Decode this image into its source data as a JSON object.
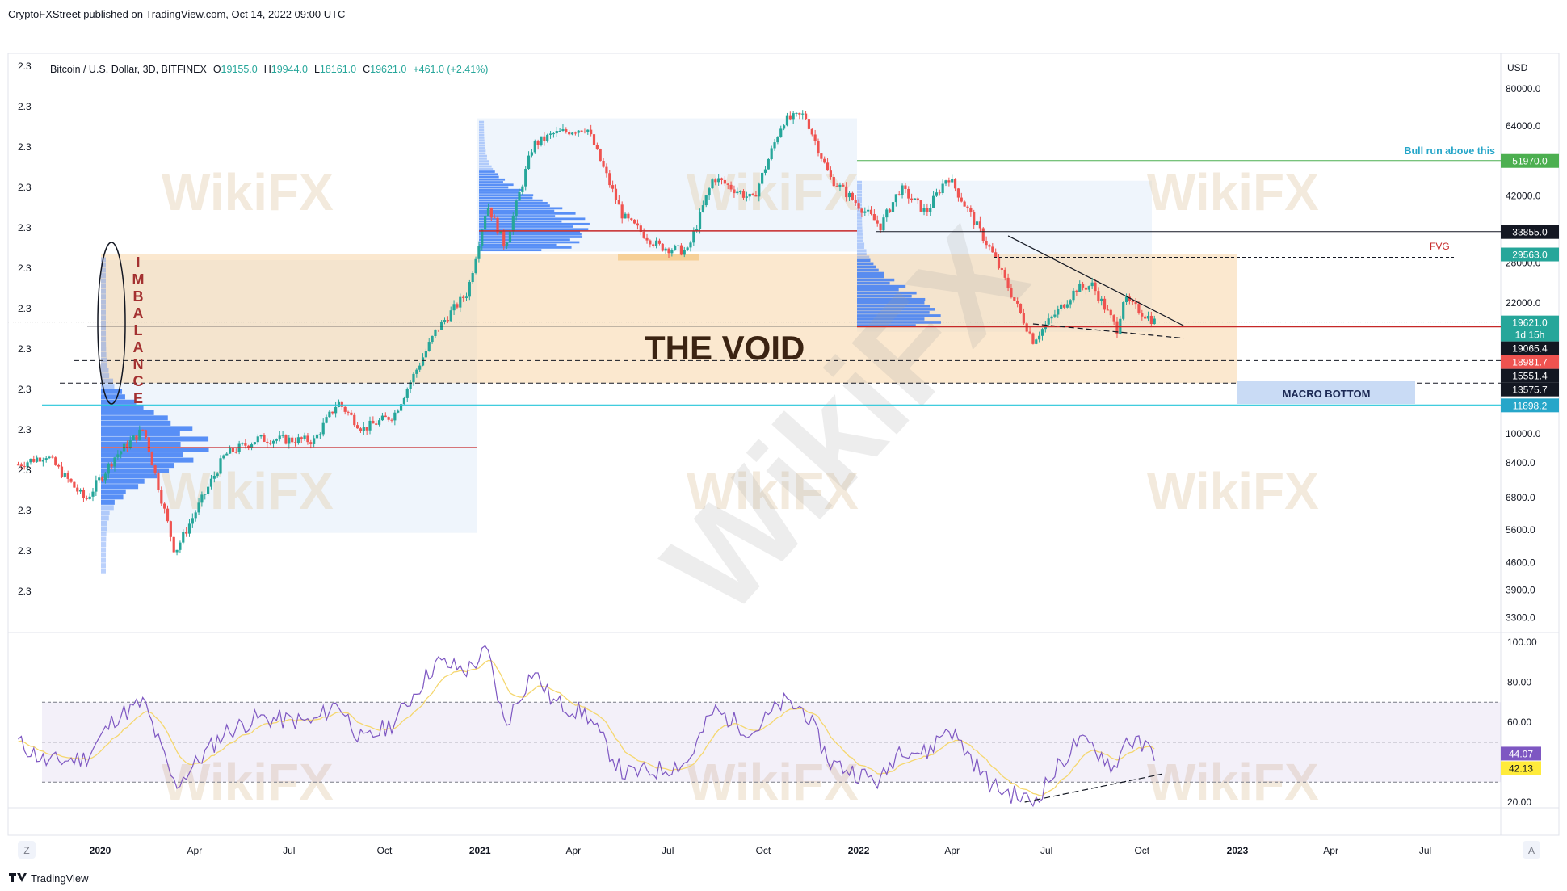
{
  "header": {
    "published": "CryptoFXStreet published on TradingView.com, Oct 14, 2022 09:00 UTC"
  },
  "footer": {
    "brand": "TradingView",
    "left_btn": "Z",
    "right_btn": "A"
  },
  "symbol": {
    "name": "Bitcoin / U.S. Dollar, 3D, BITFINEX",
    "o_label": "O",
    "o": "19155.0",
    "h_label": "H",
    "h": "19944.0",
    "l_label": "L",
    "l": "18161.0",
    "c_label": "C",
    "c": "19621.0",
    "change": "+461.0 (+2.41%)"
  },
  "left_scale": {
    "label": "2.3",
    "count": 14
  },
  "watermark": {
    "text": "WikiFX"
  },
  "annotations": {
    "imbalance": [
      "I",
      "M",
      "B",
      "A",
      "L",
      "A",
      "N",
      "C",
      "E"
    ],
    "void": "THE VOID",
    "macro_bottom": "MACRO BOTTOM",
    "fvg": "FVG",
    "bull_run": "Bull run above this"
  },
  "colors": {
    "candle_up": "#26a69a",
    "candle_down": "#ef5350",
    "rsi": "#7e57c2",
    "rsi_ma": "#f5d76e",
    "void": "#f7d6a8",
    "volume_profile": "#3d7cf5",
    "line_red": "#c62828",
    "line_teal": "#26c6da",
    "line_green": "#4caf50",
    "macro_box": "#c9dbf5"
  },
  "chart_data": {
    "type": "candlestick",
    "title": "Bitcoin / U.S. Dollar, 3D, BITFINEX",
    "yscale": "log",
    "y_unit": "USD",
    "y_ticks": [
      "80000.0",
      "64000.0",
      "42000.0",
      "28000.0",
      "22000.0",
      "10000.0",
      "8400.0",
      "6800.0",
      "5600.0",
      "4600.0",
      "3900.0",
      "3300.0"
    ],
    "x_ticks": [
      "2020",
      "Apr",
      "Jul",
      "Oct",
      "2021",
      "Apr",
      "Jul",
      "Oct",
      "2022",
      "Apr",
      "Jul",
      "Oct",
      "2023",
      "Apr",
      "Jul"
    ],
    "price_path": [
      [
        "2019-10-14",
        8300
      ],
      [
        "2019-11-10",
        8800
      ],
      [
        "2019-12-18",
        6700
      ],
      [
        "2020-01-15",
        8700
      ],
      [
        "2020-02-12",
        10300
      ],
      [
        "2020-03-13",
        4900
      ],
      [
        "2020-04-30",
        8800
      ],
      [
        "2020-06-01",
        9700
      ],
      [
        "2020-07-25",
        9600
      ],
      [
        "2020-08-17",
        12100
      ],
      [
        "2020-09-10",
        10300
      ],
      [
        "2020-10-10",
        11200
      ],
      [
        "2020-11-20",
        18700
      ],
      [
        "2020-12-20",
        23500
      ],
      [
        "2021-01-08",
        40000
      ],
      [
        "2021-01-25",
        31000
      ],
      [
        "2021-02-21",
        57000
      ],
      [
        "2021-03-13",
        61000
      ],
      [
        "2021-04-14",
        63500
      ],
      [
        "2021-05-19",
        37000
      ],
      [
        "2021-06-22",
        31000
      ],
      [
        "2021-07-20",
        30000
      ],
      [
        "2021-08-14",
        47000
      ],
      [
        "2021-09-21",
        41000
      ],
      [
        "2021-10-20",
        66000
      ],
      [
        "2021-11-10",
        68500
      ],
      [
        "2021-12-04",
        47000
      ],
      [
        "2022-01-22",
        35000
      ],
      [
        "2022-02-10",
        44000
      ],
      [
        "2022-03-07",
        38000
      ],
      [
        "2022-03-28",
        47500
      ],
      [
        "2022-05-09",
        30000
      ],
      [
        "2022-06-18",
        17600
      ],
      [
        "2022-07-30",
        24000
      ],
      [
        "2022-08-14",
        24500
      ],
      [
        "2022-09-07",
        18800
      ],
      [
        "2022-09-13",
        22500
      ],
      [
        "2022-10-14",
        19621
      ]
    ],
    "levels": [
      {
        "label": "51970.0",
        "value": 51970,
        "color": "#4caf50"
      },
      {
        "label": "33855.0",
        "value": 33855,
        "color": "#131722"
      },
      {
        "label": "29563.0",
        "value": 29563,
        "color": "#26a69a"
      },
      {
        "label": "19621.0",
        "sub": "1d 15h",
        "value": 19621,
        "color": "#26a69a"
      },
      {
        "label": "19065.4",
        "value": 19065,
        "color": "#131722"
      },
      {
        "label": "18981.7",
        "value": 18981,
        "color": "#ef5350"
      },
      {
        "label": "15551.4",
        "value": 15551,
        "color": "#131722"
      },
      {
        "label": "13575.7",
        "value": 13575,
        "color": "#131722"
      },
      {
        "label": "11898.2",
        "value": 11898,
        "color": "#26a6c9"
      }
    ],
    "rsi": {
      "y_ticks": [
        "100.00",
        "80.00",
        "60.00",
        "20.00"
      ],
      "rsi_last": "44.07",
      "ma_last": "42.13",
      "overbought": 70,
      "oversold": 30,
      "mid": 50,
      "path": [
        [
          "2019-10-14",
          50
        ],
        [
          "2019-11-10",
          40
        ],
        [
          "2019-12-18",
          42
        ],
        [
          "2020-01-15",
          62
        ],
        [
          "2020-02-12",
          70
        ],
        [
          "2020-03-13",
          28
        ],
        [
          "2020-04-30",
          55
        ],
        [
          "2020-06-01",
          62
        ],
        [
          "2020-07-25",
          60
        ],
        [
          "2020-08-17",
          70
        ],
        [
          "2020-09-10",
          50
        ],
        [
          "2020-10-10",
          60
        ],
        [
          "2020-11-20",
          90
        ],
        [
          "2020-12-20",
          86
        ],
        [
          "2021-01-08",
          96
        ],
        [
          "2021-01-25",
          58
        ],
        [
          "2021-02-21",
          86
        ],
        [
          "2021-03-13",
          70
        ],
        [
          "2021-04-14",
          64
        ],
        [
          "2021-05-19",
          34
        ],
        [
          "2021-06-22",
          36
        ],
        [
          "2021-07-20",
          40
        ],
        [
          "2021-08-14",
          66
        ],
        [
          "2021-09-21",
          55
        ],
        [
          "2021-10-20",
          70
        ],
        [
          "2021-11-10",
          66
        ],
        [
          "2021-12-04",
          40
        ],
        [
          "2022-01-22",
          30
        ],
        [
          "2022-02-10",
          48
        ],
        [
          "2022-03-07",
          44
        ],
        [
          "2022-03-28",
          58
        ],
        [
          "2022-05-09",
          28
        ],
        [
          "2022-06-18",
          20
        ],
        [
          "2022-07-30",
          50
        ],
        [
          "2022-08-14",
          48
        ],
        [
          "2022-09-07",
          36
        ],
        [
          "2022-09-13",
          52
        ],
        [
          "2022-10-14",
          45
        ]
      ]
    }
  }
}
